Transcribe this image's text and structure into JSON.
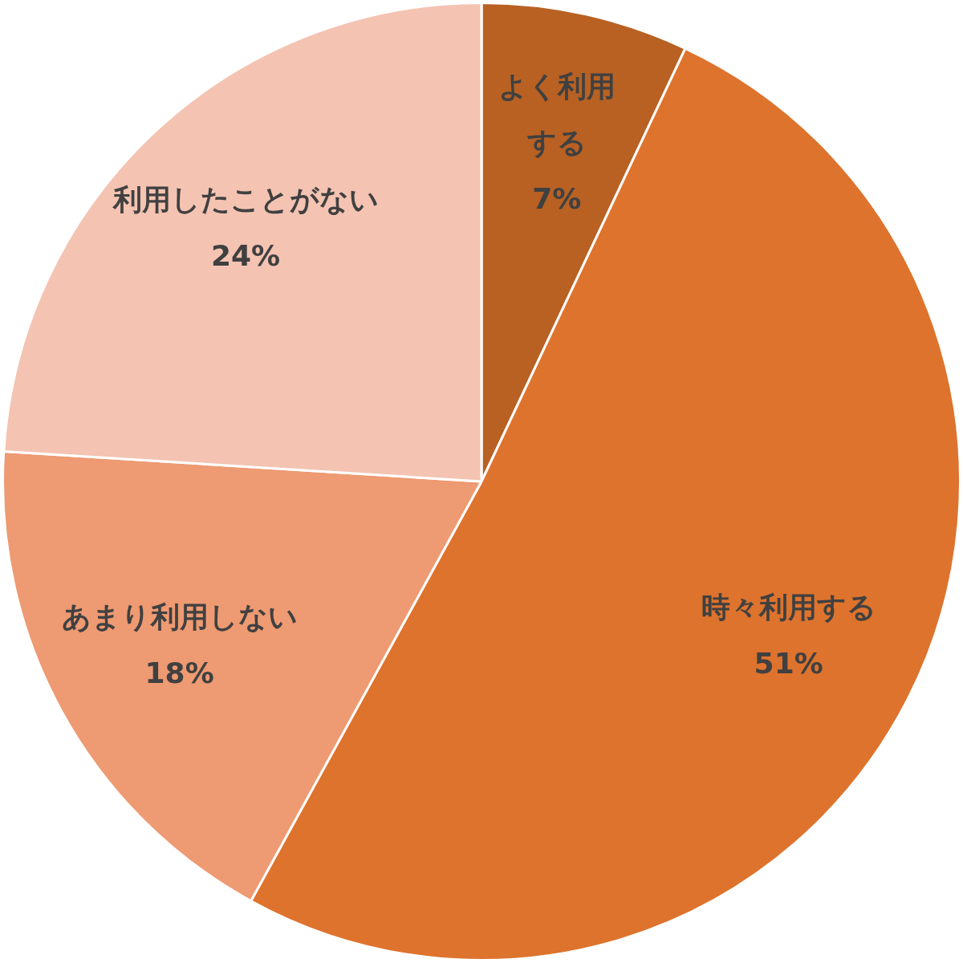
{
  "chart_data": {
    "type": "pie",
    "categories": [
      "よく利用する",
      "時々利用する",
      "あまり利用しない",
      "利用したことがない"
    ],
    "values": [
      7,
      51,
      18,
      24
    ],
    "value_labels": [
      "7%",
      "51%",
      "18%",
      "24%"
    ],
    "colors": [
      "#b86123",
      "#de732d",
      "#ee9a72",
      "#f4c3b2"
    ],
    "legend": false
  }
}
